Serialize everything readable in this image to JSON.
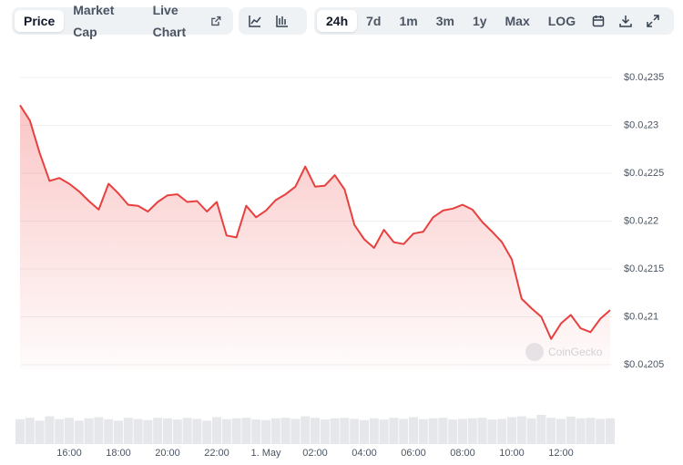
{
  "toolbar": {
    "tabs": [
      "Price",
      "Market Cap",
      "Live Chart"
    ],
    "ranges": [
      "24h",
      "7d",
      "1m",
      "3m",
      "1y",
      "Max",
      "LOG"
    ]
  },
  "chart_data": {
    "type": "line",
    "watermark": "CoinGecko",
    "color": "#e8403f",
    "grid": true,
    "x": [
      14,
      14.4,
      14.8,
      15.2,
      15.6,
      16,
      16.4,
      16.8,
      17.2,
      17.6,
      18,
      18.4,
      18.8,
      19.2,
      19.6,
      20,
      20.4,
      20.8,
      21.2,
      21.6,
      22,
      22.4,
      22.8,
      23.2,
      23.6,
      24,
      24.4,
      24.8,
      25.2,
      25.6,
      26,
      26.4,
      26.8,
      27.2,
      27.6,
      28,
      28.4,
      28.8,
      29.2,
      29.6,
      30,
      30.4,
      30.8,
      31.2,
      31.6,
      32,
      32.4,
      32.8,
      33.2,
      33.6,
      34,
      34.4,
      34.8,
      35.2,
      35.6,
      36,
      36.4,
      36.8,
      37.2,
      37.6,
      38
    ],
    "values": [
      2.321e-05,
      2.305e-05,
      2.271e-05,
      2.242e-05,
      2.245e-05,
      2.239e-05,
      2.231e-05,
      2.221e-05,
      2.212e-05,
      2.239e-05,
      2.229e-05,
      2.217e-05,
      2.216e-05,
      2.21e-05,
      2.22e-05,
      2.227e-05,
      2.228e-05,
      2.22e-05,
      2.221e-05,
      2.21e-05,
      2.22e-05,
      2.185e-05,
      2.183e-05,
      2.216e-05,
      2.204e-05,
      2.211e-05,
      2.222e-05,
      2.228e-05,
      2.236e-05,
      2.257e-05,
      2.236e-05,
      2.237e-05,
      2.248e-05,
      2.233e-05,
      2.196e-05,
      2.181e-05,
      2.172e-05,
      2.191e-05,
      2.178e-05,
      2.176e-05,
      2.187e-05,
      2.189e-05,
      2.204e-05,
      2.211e-05,
      2.213e-05,
      2.217e-05,
      2.212e-05,
      2.199e-05,
      2.189e-05,
      2.178e-05,
      2.16e-05,
      2.119e-05,
      2.109e-05,
      2.1e-05,
      2.077e-05,
      2.093e-05,
      2.102e-05,
      2.088e-05,
      2.084e-05,
      2.098e-05,
      2.107e-05
    ],
    "volume": [
      0.85,
      0.9,
      0.8,
      0.95,
      0.85,
      0.9,
      0.8,
      0.88,
      0.92,
      0.85,
      0.8,
      0.9,
      0.86,
      0.82,
      0.9,
      0.88,
      0.84,
      0.9,
      0.86,
      0.8,
      0.92,
      0.85,
      0.88,
      0.9,
      0.84,
      0.82,
      0.88,
      0.9,
      0.86,
      0.95,
      0.9,
      0.84,
      0.88,
      0.9,
      0.86,
      0.82,
      0.88,
      0.84,
      0.9,
      0.86,
      0.92,
      0.85,
      0.88,
      0.9,
      0.84,
      0.86,
      0.88,
      0.9,
      0.84,
      0.86,
      0.92,
      0.95,
      0.88,
      1,
      0.9,
      0.86,
      0.94,
      0.88,
      0.9,
      0.86,
      0.88
    ],
    "xlim": [
      14,
      38
    ],
    "xticks": [
      {
        "value": 16,
        "label": "16:00"
      },
      {
        "value": 18,
        "label": "18:00"
      },
      {
        "value": 20,
        "label": "20:00"
      },
      {
        "value": 22,
        "label": "22:00"
      },
      {
        "value": 24,
        "label": "1. May"
      },
      {
        "value": 26,
        "label": "02:00"
      },
      {
        "value": 28,
        "label": "04:00"
      },
      {
        "value": 30,
        "label": "06:00"
      },
      {
        "value": 32,
        "label": "08:00"
      },
      {
        "value": 34,
        "label": "10:00"
      },
      {
        "value": 36,
        "label": "12:00"
      }
    ],
    "ylim": [
      2.05e-05,
      2.35e-05
    ],
    "yticks": [
      {
        "value": 2.05e-05,
        "label": "$0.0₄205"
      },
      {
        "value": 2.1e-05,
        "label": "$0.0₄21"
      },
      {
        "value": 2.15e-05,
        "label": "$0.0₄215"
      },
      {
        "value": 2.2e-05,
        "label": "$0.0₄22"
      },
      {
        "value": 2.25e-05,
        "label": "$0.0₄225"
      },
      {
        "value": 2.3e-05,
        "label": "$0.0₄23"
      },
      {
        "value": 2.35e-05,
        "label": "$0.0₄235"
      }
    ]
  }
}
